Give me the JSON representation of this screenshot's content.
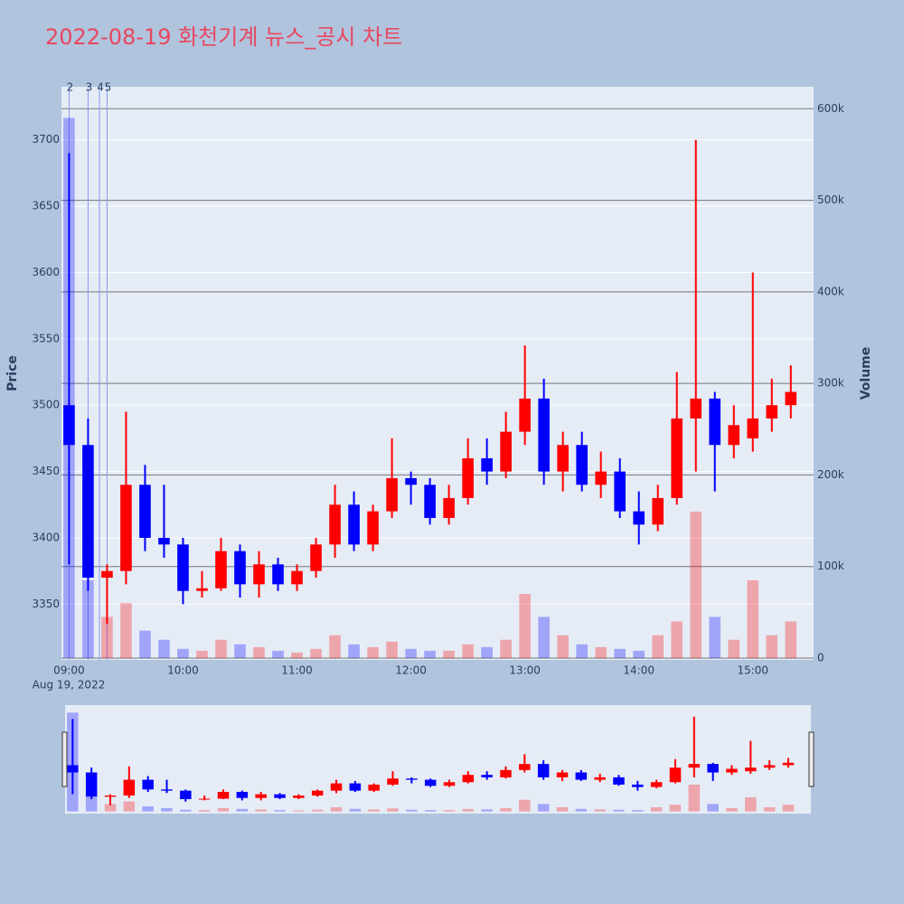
{
  "chart_data": {
    "type": "candlestick",
    "title": "2022-08-19 화천기계 뉴스_공시 차트",
    "title_color": "#e8475f",
    "y_title": "Price",
    "y2_title": "Volume",
    "x_date_label": "Aug 19, 2022",
    "increasing_color": "#ff0000",
    "decreasing_color": "#0000ff",
    "x": [
      "2022-08-19 09:00",
      "2022-08-19 09:10",
      "2022-08-19 09:20",
      "2022-08-19 09:30",
      "2022-08-19 09:40",
      "2022-08-19 09:50",
      "2022-08-19 10:00",
      "2022-08-19 10:10",
      "2022-08-19 10:20",
      "2022-08-19 10:30",
      "2022-08-19 10:40",
      "2022-08-19 10:50",
      "2022-08-19 11:00",
      "2022-08-19 11:10",
      "2022-08-19 11:20",
      "2022-08-19 11:30",
      "2022-08-19 11:40",
      "2022-08-19 11:50",
      "2022-08-19 12:00",
      "2022-08-19 12:10",
      "2022-08-19 12:20",
      "2022-08-19 12:30",
      "2022-08-19 12:40",
      "2022-08-19 12:50",
      "2022-08-19 13:00",
      "2022-08-19 13:10",
      "2022-08-19 13:20",
      "2022-08-19 13:30",
      "2022-08-19 13:40",
      "2022-08-19 13:50",
      "2022-08-19 14:00",
      "2022-08-19 14:10",
      "2022-08-19 14:20",
      "2022-08-19 14:30",
      "2022-08-19 14:40",
      "2022-08-19 14:50",
      "2022-08-19 15:00",
      "2022-08-19 15:10",
      "2022-08-19 15:20"
    ],
    "open": [
      3500,
      3470,
      3370,
      3375,
      3440,
      3400,
      3395,
      3360,
      3362,
      3390,
      3365,
      3380,
      3365,
      3375,
      3395,
      3425,
      3395,
      3420,
      3445,
      3440,
      3415,
      3430,
      3460,
      3450,
      3480,
      3505,
      3450,
      3470,
      3440,
      3450,
      3420,
      3410,
      3430,
      3490,
      3505,
      3470,
      3475,
      3490,
      3500
    ],
    "high": [
      3690,
      3490,
      3380,
      3495,
      3455,
      3440,
      3400,
      3375,
      3400,
      3395,
      3390,
      3385,
      3380,
      3400,
      3440,
      3435,
      3425,
      3475,
      3450,
      3445,
      3440,
      3475,
      3475,
      3495,
      3545,
      3520,
      3480,
      3480,
      3465,
      3460,
      3435,
      3440,
      3525,
      3700,
      3510,
      3500,
      3600,
      3520,
      3530
    ],
    "low": [
      3380,
      3360,
      3335,
      3365,
      3390,
      3385,
      3350,
      3355,
      3360,
      3355,
      3355,
      3360,
      3360,
      3370,
      3385,
      3390,
      3390,
      3415,
      3425,
      3410,
      3410,
      3425,
      3440,
      3445,
      3470,
      3440,
      3435,
      3435,
      3430,
      3415,
      3395,
      3405,
      3425,
      3450,
      3435,
      3460,
      3465,
      3480,
      3490
    ],
    "close": [
      3470,
      3370,
      3375,
      3440,
      3400,
      3395,
      3360,
      3362,
      3390,
      3365,
      3380,
      3365,
      3375,
      3395,
      3425,
      3395,
      3420,
      3445,
      3440,
      3415,
      3430,
      3460,
      3450,
      3480,
      3505,
      3450,
      3470,
      3440,
      3450,
      3420,
      3410,
      3430,
      3490,
      3505,
      3470,
      3485,
      3490,
      3500,
      3510
    ],
    "volume": [
      590000,
      85000,
      45000,
      60000,
      30000,
      20000,
      10000,
      8000,
      20000,
      15000,
      12000,
      8000,
      6000,
      10000,
      25000,
      15000,
      12000,
      18000,
      10000,
      8000,
      8000,
      15000,
      12000,
      20000,
      70000,
      45000,
      25000,
      15000,
      12000,
      10000,
      8000,
      25000,
      40000,
      160000,
      45000,
      20000,
      85000,
      25000,
      40000
    ],
    "xlim": [
      "2022-08-19 08:56",
      "2022-08-19 15:32"
    ],
    "xticks": [
      {
        "value": "2022-08-19 09:00",
        "label": "09:00"
      },
      {
        "value": "2022-08-19 10:00",
        "label": "10:00"
      },
      {
        "value": "2022-08-19 11:00",
        "label": "11:00"
      },
      {
        "value": "2022-08-19 12:00",
        "label": "12:00"
      },
      {
        "value": "2022-08-19 13:00",
        "label": "13:00"
      },
      {
        "value": "2022-08-19 14:00",
        "label": "14:00"
      },
      {
        "value": "2022-08-19 15:00",
        "label": "15:00"
      }
    ],
    "ylim": [
      3308,
      3740
    ],
    "yticks": [
      3350,
      3400,
      3450,
      3500,
      3550,
      3600,
      3650,
      3700
    ],
    "y2lim": [
      -2000,
      624000
    ],
    "y2ticks": [
      0,
      {
        "value": 100000,
        "label": "100k"
      },
      {
        "value": 200000,
        "label": "200k"
      },
      {
        "value": 300000,
        "label": "300k"
      },
      {
        "value": 400000,
        "label": "400k"
      },
      {
        "value": 500000,
        "label": "500k"
      },
      {
        "value": 600000,
        "label": "600k"
      }
    ],
    "annotations": [
      {
        "x": "2022-08-19 09:00",
        "text": "2"
      },
      {
        "x": "2022-08-19 09:10",
        "text": "3"
      },
      {
        "x": "2022-08-19 09:16",
        "text": "4"
      },
      {
        "x": "2022-08-19 09:20",
        "text": "5"
      }
    ],
    "range_slider": true
  }
}
